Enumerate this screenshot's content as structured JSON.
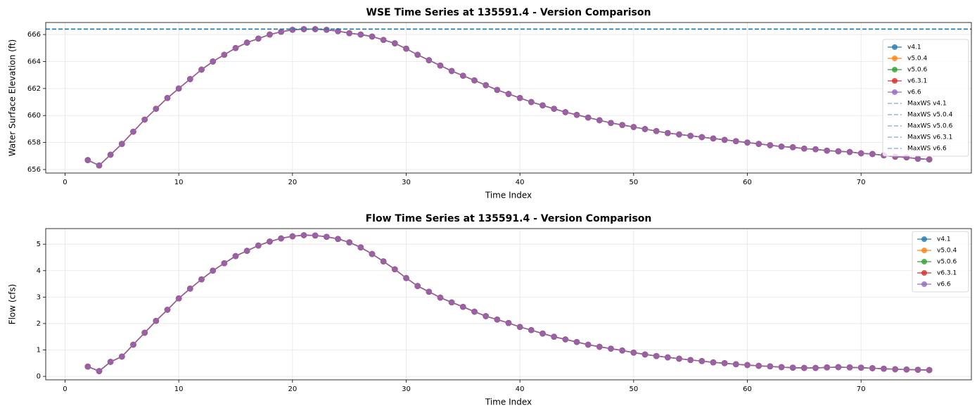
{
  "chart_data": [
    {
      "type": "line",
      "title": "WSE Time Series at 135591.4 - Version Comparison",
      "x_label": "Time Index",
      "y_label": "Water Surface Elevation (ft)",
      "x": [
        2,
        3,
        4,
        5,
        6,
        7,
        8,
        9,
        10,
        11,
        12,
        13,
        14,
        15,
        16,
        17,
        18,
        19,
        20,
        21,
        22,
        23,
        24,
        25,
        26,
        27,
        28,
        29,
        30,
        31,
        32,
        33,
        34,
        35,
        36,
        37,
        38,
        39,
        40,
        41,
        42,
        43,
        44,
        45,
        46,
        47,
        48,
        49,
        50,
        51,
        52,
        53,
        54,
        55,
        56,
        57,
        58,
        59,
        60,
        61,
        62,
        63,
        64,
        65,
        66,
        67,
        68,
        69,
        70,
        71,
        72,
        73,
        74,
        75,
        76
      ],
      "series": [
        {
          "name": "v4.1",
          "color": "#1f77b4",
          "values": [
            656.7,
            656.3,
            657.1,
            657.9,
            658.8,
            659.7,
            660.5,
            661.3,
            662.0,
            662.7,
            663.4,
            664.0,
            664.5,
            665.0,
            665.4,
            665.7,
            666.0,
            666.2,
            666.35,
            666.4,
            666.4,
            666.35,
            666.25,
            666.1,
            666.0,
            665.85,
            665.6,
            665.35,
            664.95,
            664.5,
            664.1,
            663.7,
            663.3,
            662.95,
            662.6,
            662.25,
            661.9,
            661.6,
            661.3,
            661.0,
            660.75,
            660.5,
            660.25,
            660.05,
            659.85,
            659.65,
            659.45,
            659.3,
            659.15,
            659.0,
            658.85,
            658.7,
            658.6,
            658.5,
            658.4,
            658.3,
            658.2,
            658.1,
            658.0,
            657.9,
            657.8,
            657.7,
            657.65,
            657.55,
            657.5,
            657.4,
            657.35,
            657.3,
            657.2,
            657.15,
            657.05,
            656.95,
            656.9,
            656.8,
            656.75
          ]
        },
        {
          "name": "v5.0.4",
          "color": "#ff7f0e",
          "values": [
            656.7,
            656.3,
            657.1,
            657.9,
            658.8,
            659.7,
            660.5,
            661.3,
            662.0,
            662.7,
            663.4,
            664.0,
            664.5,
            665.0,
            665.4,
            665.7,
            666.0,
            666.2,
            666.35,
            666.4,
            666.4,
            666.35,
            666.25,
            666.1,
            666.0,
            665.85,
            665.6,
            665.35,
            664.95,
            664.5,
            664.1,
            663.7,
            663.3,
            662.95,
            662.6,
            662.25,
            661.9,
            661.6,
            661.3,
            661.0,
            660.75,
            660.5,
            660.25,
            660.05,
            659.85,
            659.65,
            659.45,
            659.3,
            659.15,
            659.0,
            658.85,
            658.7,
            658.6,
            658.5,
            658.4,
            658.3,
            658.2,
            658.1,
            658.0,
            657.9,
            657.8,
            657.7,
            657.65,
            657.55,
            657.5,
            657.4,
            657.35,
            657.3,
            657.2,
            657.15,
            657.05,
            656.95,
            656.9,
            656.8,
            656.75
          ]
        },
        {
          "name": "v5.0.6",
          "color": "#2ca02c",
          "values": [
            656.7,
            656.3,
            657.1,
            657.9,
            658.8,
            659.7,
            660.5,
            661.3,
            662.0,
            662.7,
            663.4,
            664.0,
            664.5,
            665.0,
            665.4,
            665.7,
            666.0,
            666.2,
            666.35,
            666.4,
            666.4,
            666.35,
            666.25,
            666.1,
            666.0,
            665.85,
            665.6,
            665.35,
            664.95,
            664.5,
            664.1,
            663.7,
            663.3,
            662.95,
            662.6,
            662.25,
            661.9,
            661.6,
            661.3,
            661.0,
            660.75,
            660.5,
            660.25,
            660.05,
            659.85,
            659.65,
            659.45,
            659.3,
            659.15,
            659.0,
            658.85,
            658.7,
            658.6,
            658.5,
            658.4,
            658.3,
            658.2,
            658.1,
            658.0,
            657.9,
            657.8,
            657.7,
            657.65,
            657.55,
            657.5,
            657.4,
            657.35,
            657.3,
            657.2,
            657.15,
            657.05,
            656.95,
            656.9,
            656.8,
            656.75
          ]
        },
        {
          "name": "v6.3.1",
          "color": "#d62728",
          "values": [
            656.7,
            656.3,
            657.1,
            657.9,
            658.8,
            659.7,
            660.5,
            661.3,
            662.0,
            662.7,
            663.4,
            664.0,
            664.5,
            665.0,
            665.4,
            665.7,
            666.0,
            666.2,
            666.35,
            666.4,
            666.4,
            666.35,
            666.25,
            666.1,
            666.0,
            665.85,
            665.6,
            665.35,
            664.95,
            664.5,
            664.1,
            663.7,
            663.3,
            662.95,
            662.6,
            662.25,
            661.9,
            661.6,
            661.3,
            661.0,
            660.75,
            660.5,
            660.25,
            660.05,
            659.85,
            659.65,
            659.45,
            659.3,
            659.15,
            659.0,
            658.85,
            658.7,
            658.6,
            658.5,
            658.4,
            658.3,
            658.2,
            658.1,
            658.0,
            657.9,
            657.8,
            657.7,
            657.65,
            657.55,
            657.5,
            657.4,
            657.35,
            657.3,
            657.2,
            657.15,
            657.05,
            656.95,
            656.9,
            656.8,
            656.75
          ]
        },
        {
          "name": "v6.6",
          "color": "#9467bd",
          "values": [
            656.7,
            656.3,
            657.1,
            657.9,
            658.8,
            659.7,
            660.5,
            661.3,
            662.0,
            662.7,
            663.4,
            664.0,
            664.5,
            665.0,
            665.4,
            665.7,
            666.0,
            666.2,
            666.35,
            666.4,
            666.4,
            666.35,
            666.25,
            666.1,
            666.0,
            665.85,
            665.6,
            665.35,
            664.95,
            664.5,
            664.1,
            663.7,
            663.3,
            662.95,
            662.6,
            662.25,
            661.9,
            661.6,
            661.3,
            661.0,
            660.75,
            660.5,
            660.25,
            660.05,
            659.85,
            659.65,
            659.45,
            659.3,
            659.15,
            659.0,
            658.85,
            658.7,
            658.6,
            658.5,
            658.4,
            658.3,
            658.2,
            658.1,
            658.0,
            657.9,
            657.8,
            657.7,
            657.65,
            657.55,
            657.5,
            657.4,
            657.35,
            657.3,
            657.2,
            657.15,
            657.05,
            656.95,
            656.9,
            656.8,
            656.75
          ]
        }
      ],
      "hlines": [
        {
          "name": "MaxWS v4.1",
          "color": "#1f77b4",
          "value": 666.4
        },
        {
          "name": "MaxWS v5.0.4",
          "color": "#1f77b4",
          "value": 666.4
        },
        {
          "name": "MaxWS v5.0.6",
          "color": "#1f77b4",
          "value": 666.4
        },
        {
          "name": "MaxWS v6.3.1",
          "color": "#1f77b4",
          "value": 666.4
        },
        {
          "name": "MaxWS v6.6",
          "color": "#1f77b4",
          "value": 666.4
        }
      ],
      "xlim": [
        -1.7,
        79.7
      ],
      "xticks": [
        0,
        10,
        20,
        30,
        40,
        50,
        60,
        70
      ],
      "ylim": [
        655.74,
        666.89
      ],
      "yticks": [
        656,
        658,
        660,
        662,
        664,
        666
      ],
      "grid": true,
      "legend": "center right"
    },
    {
      "type": "line",
      "title": "Flow Time Series at 135591.4 - Version Comparison",
      "x_label": "Time Index",
      "y_label": "Flow (cfs)",
      "x": [
        2,
        3,
        4,
        5,
        6,
        7,
        8,
        9,
        10,
        11,
        12,
        13,
        14,
        15,
        16,
        17,
        18,
        19,
        20,
        21,
        22,
        23,
        24,
        25,
        26,
        27,
        28,
        29,
        30,
        31,
        32,
        33,
        34,
        35,
        36,
        37,
        38,
        39,
        40,
        41,
        42,
        43,
        44,
        45,
        46,
        47,
        48,
        49,
        50,
        51,
        52,
        53,
        54,
        55,
        56,
        57,
        58,
        59,
        60,
        61,
        62,
        63,
        64,
        65,
        66,
        67,
        68,
        69,
        70,
        71,
        72,
        73,
        74,
        75,
        76
      ],
      "series": [
        {
          "name": "v4.1",
          "color": "#1f77b4",
          "values": [
            0.37,
            0.2,
            0.55,
            0.75,
            1.2,
            1.65,
            2.1,
            2.52,
            2.95,
            3.32,
            3.67,
            4.0,
            4.28,
            4.55,
            4.75,
            4.95,
            5.1,
            5.22,
            5.3,
            5.34,
            5.33,
            5.28,
            5.2,
            5.07,
            4.88,
            4.63,
            4.35,
            4.05,
            3.72,
            3.42,
            3.2,
            2.98,
            2.8,
            2.63,
            2.45,
            2.28,
            2.15,
            2.02,
            1.87,
            1.75,
            1.62,
            1.5,
            1.4,
            1.3,
            1.2,
            1.12,
            1.05,
            0.98,
            0.9,
            0.83,
            0.77,
            0.72,
            0.67,
            0.62,
            0.58,
            0.53,
            0.5,
            0.46,
            0.43,
            0.4,
            0.38,
            0.35,
            0.33,
            0.32,
            0.32,
            0.34,
            0.35,
            0.34,
            0.33,
            0.31,
            0.29,
            0.27,
            0.26,
            0.25,
            0.24
          ]
        },
        {
          "name": "v5.0.4",
          "color": "#ff7f0e",
          "values": [
            0.37,
            0.2,
            0.55,
            0.75,
            1.2,
            1.65,
            2.1,
            2.52,
            2.95,
            3.32,
            3.67,
            4.0,
            4.28,
            4.55,
            4.75,
            4.95,
            5.1,
            5.22,
            5.3,
            5.34,
            5.33,
            5.28,
            5.2,
            5.07,
            4.88,
            4.63,
            4.35,
            4.05,
            3.72,
            3.42,
            3.2,
            2.98,
            2.8,
            2.63,
            2.45,
            2.28,
            2.15,
            2.02,
            1.87,
            1.75,
            1.62,
            1.5,
            1.4,
            1.3,
            1.2,
            1.12,
            1.05,
            0.98,
            0.9,
            0.83,
            0.77,
            0.72,
            0.67,
            0.62,
            0.58,
            0.53,
            0.5,
            0.46,
            0.43,
            0.4,
            0.38,
            0.35,
            0.33,
            0.32,
            0.32,
            0.34,
            0.35,
            0.34,
            0.33,
            0.31,
            0.29,
            0.27,
            0.26,
            0.25,
            0.24
          ]
        },
        {
          "name": "v5.0.6",
          "color": "#2ca02c",
          "values": [
            0.37,
            0.2,
            0.55,
            0.75,
            1.2,
            1.65,
            2.1,
            2.52,
            2.95,
            3.32,
            3.67,
            4.0,
            4.28,
            4.55,
            4.75,
            4.95,
            5.1,
            5.22,
            5.3,
            5.34,
            5.33,
            5.28,
            5.2,
            5.07,
            4.88,
            4.63,
            4.35,
            4.05,
            3.72,
            3.42,
            3.2,
            2.98,
            2.8,
            2.63,
            2.45,
            2.28,
            2.15,
            2.02,
            1.87,
            1.75,
            1.62,
            1.5,
            1.4,
            1.3,
            1.2,
            1.12,
            1.05,
            0.98,
            0.9,
            0.83,
            0.77,
            0.72,
            0.67,
            0.62,
            0.58,
            0.53,
            0.5,
            0.46,
            0.43,
            0.4,
            0.38,
            0.35,
            0.33,
            0.32,
            0.32,
            0.34,
            0.35,
            0.34,
            0.33,
            0.31,
            0.29,
            0.27,
            0.26,
            0.25,
            0.24
          ]
        },
        {
          "name": "v6.3.1",
          "color": "#d62728",
          "values": [
            0.37,
            0.2,
            0.55,
            0.75,
            1.2,
            1.65,
            2.1,
            2.52,
            2.95,
            3.32,
            3.67,
            4.0,
            4.28,
            4.55,
            4.75,
            4.95,
            5.1,
            5.22,
            5.3,
            5.34,
            5.33,
            5.28,
            5.2,
            5.07,
            4.88,
            4.63,
            4.35,
            4.05,
            3.72,
            3.42,
            3.2,
            2.98,
            2.8,
            2.63,
            2.45,
            2.28,
            2.15,
            2.02,
            1.87,
            1.75,
            1.62,
            1.5,
            1.4,
            1.3,
            1.2,
            1.12,
            1.05,
            0.98,
            0.9,
            0.83,
            0.77,
            0.72,
            0.67,
            0.62,
            0.58,
            0.53,
            0.5,
            0.46,
            0.43,
            0.4,
            0.38,
            0.35,
            0.33,
            0.32,
            0.32,
            0.34,
            0.35,
            0.34,
            0.33,
            0.31,
            0.29,
            0.27,
            0.26,
            0.25,
            0.24
          ]
        },
        {
          "name": "v6.6",
          "color": "#9467bd",
          "values": [
            0.37,
            0.2,
            0.55,
            0.75,
            1.2,
            1.65,
            2.1,
            2.52,
            2.95,
            3.32,
            3.67,
            4.0,
            4.28,
            4.55,
            4.75,
            4.95,
            5.1,
            5.22,
            5.3,
            5.34,
            5.33,
            5.28,
            5.2,
            5.07,
            4.88,
            4.63,
            4.35,
            4.05,
            3.72,
            3.42,
            3.2,
            2.98,
            2.8,
            2.63,
            2.45,
            2.28,
            2.15,
            2.02,
            1.87,
            1.75,
            1.62,
            1.5,
            1.4,
            1.3,
            1.2,
            1.12,
            1.05,
            0.98,
            0.9,
            0.83,
            0.77,
            0.72,
            0.67,
            0.62,
            0.58,
            0.53,
            0.5,
            0.46,
            0.43,
            0.4,
            0.38,
            0.35,
            0.33,
            0.32,
            0.32,
            0.34,
            0.35,
            0.34,
            0.33,
            0.31,
            0.29,
            0.27,
            0.26,
            0.25,
            0.24
          ]
        }
      ],
      "xlim": [
        -1.7,
        79.7
      ],
      "xticks": [
        0,
        10,
        20,
        30,
        40,
        50,
        60,
        70
      ],
      "ylim": [
        -0.13,
        5.59
      ],
      "yticks": [
        0,
        1,
        2,
        3,
        4,
        5
      ],
      "grid": true,
      "legend": "upper right"
    }
  ]
}
